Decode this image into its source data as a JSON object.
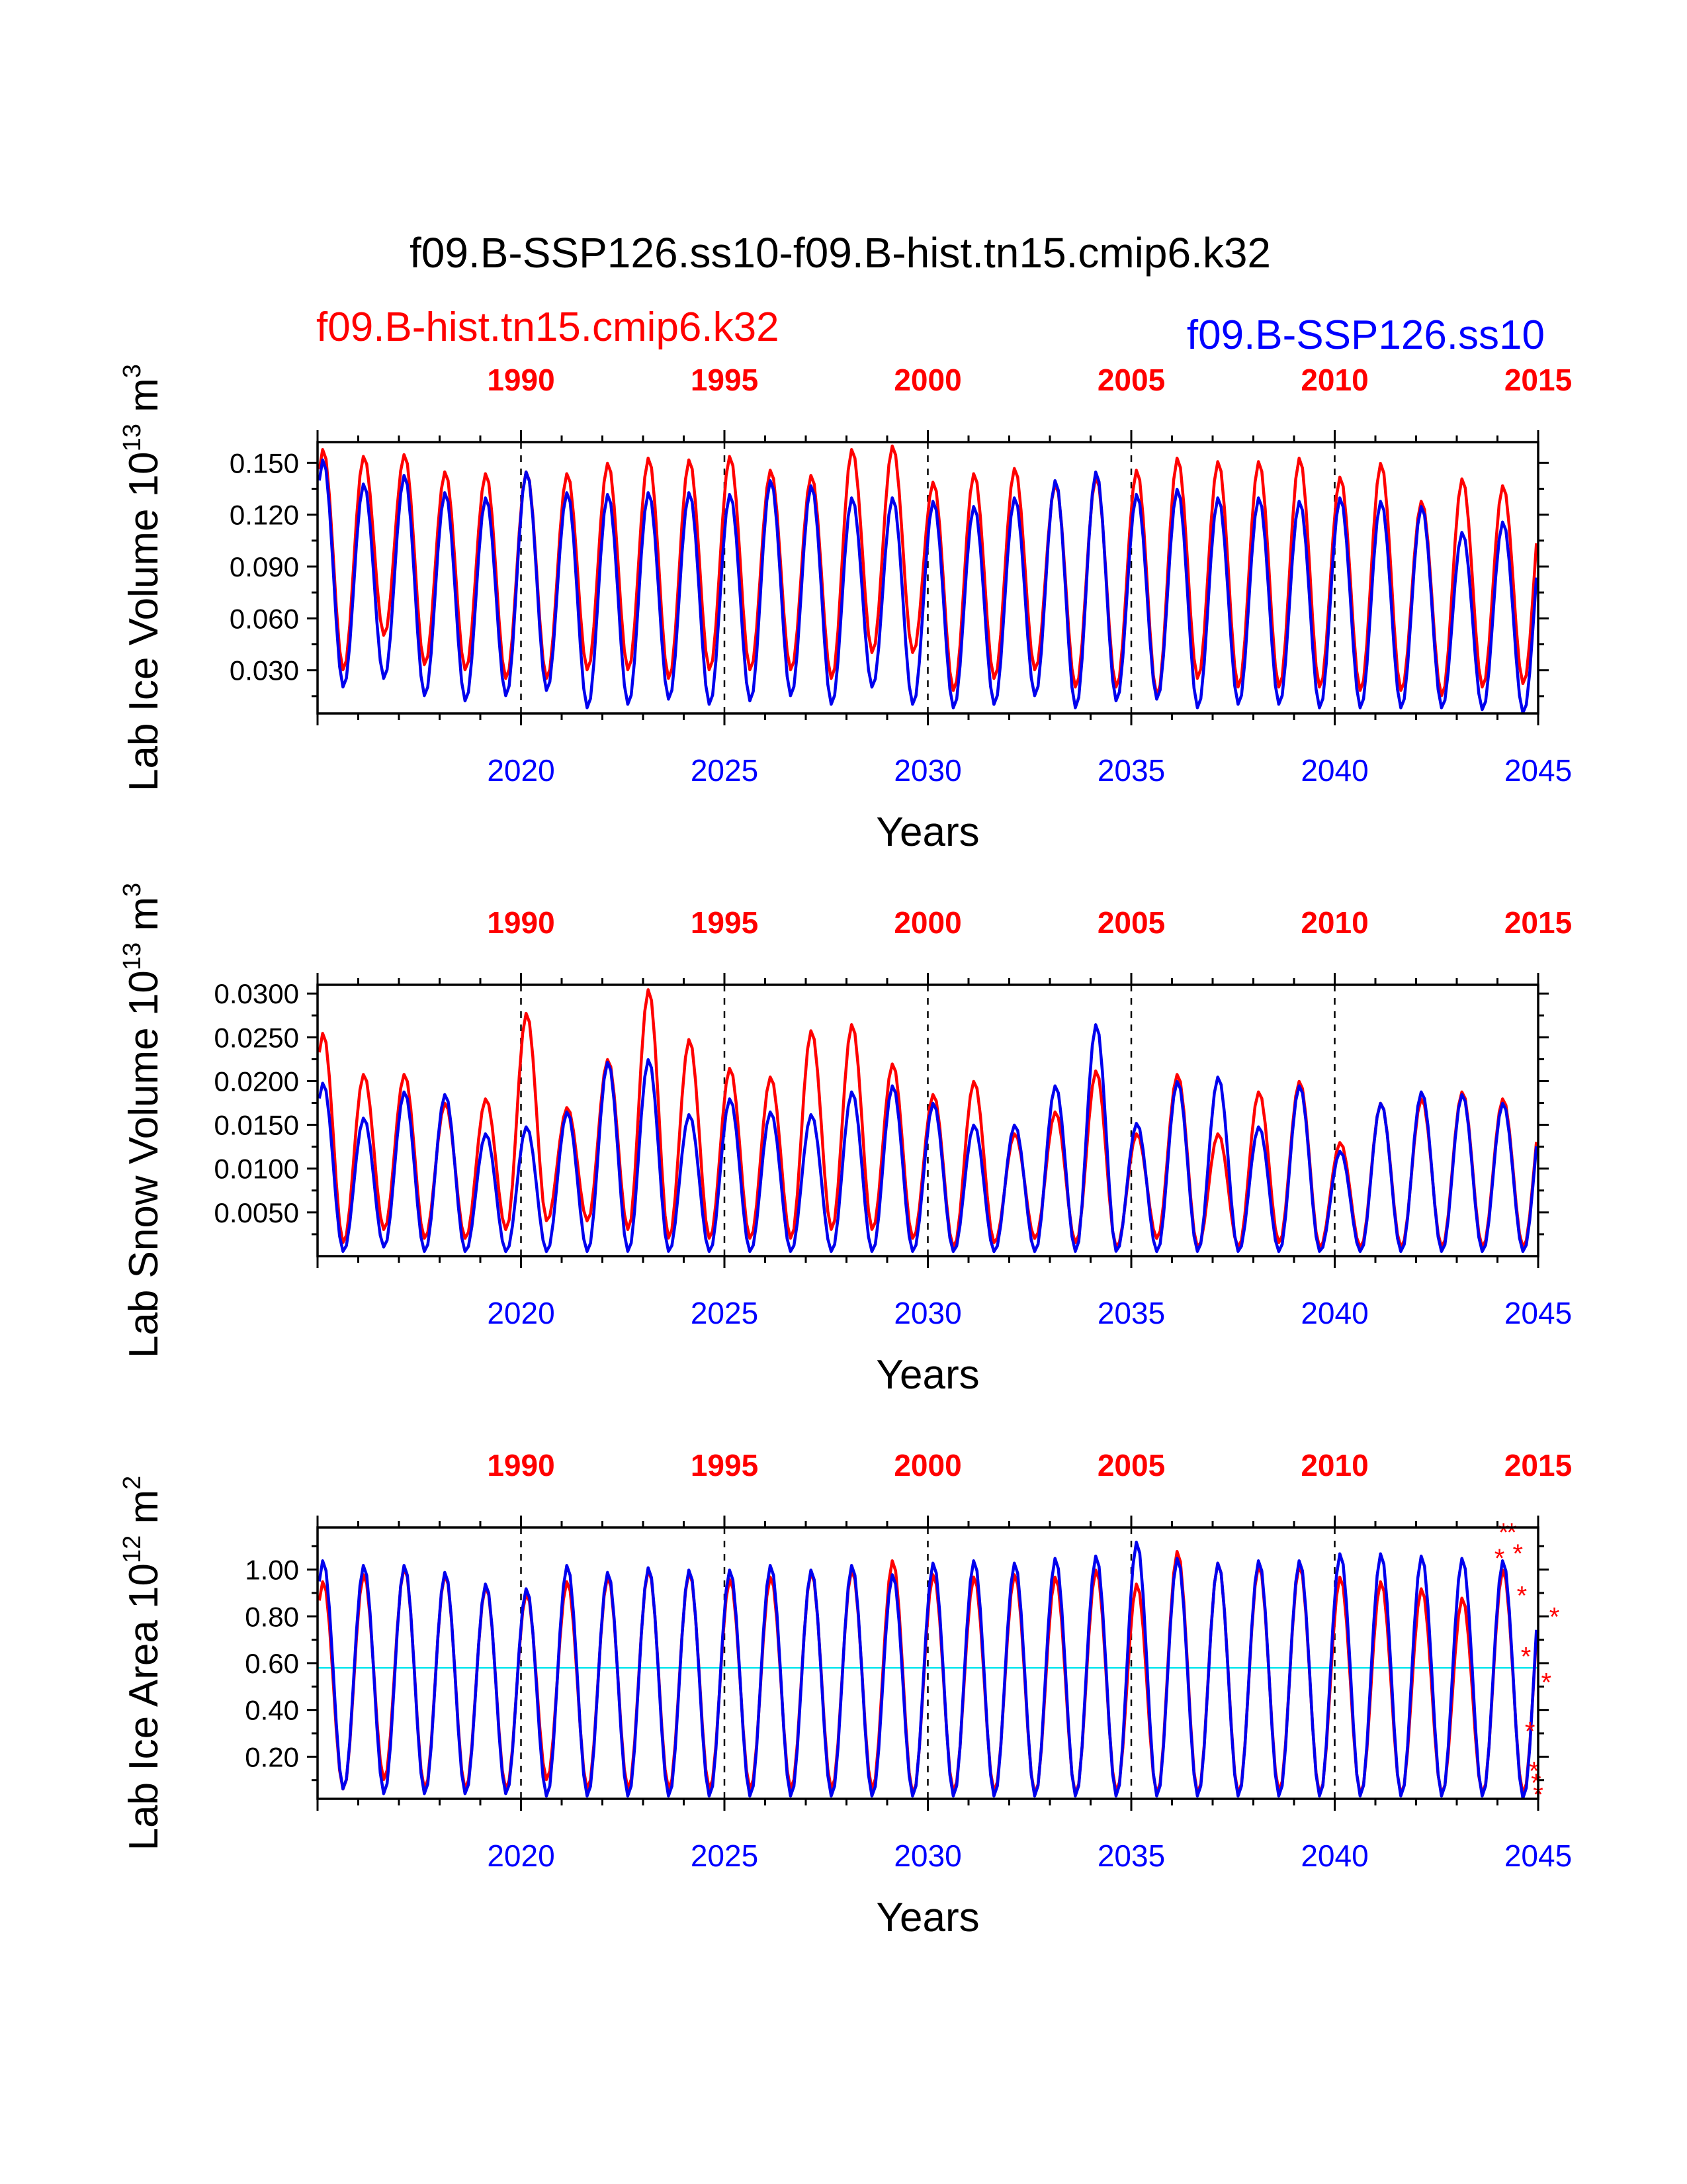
{
  "title": "f09.B-SSP126.ss10-f09.B-hist.tn15.cmip6.k32",
  "legend": {
    "red": "f09.B-hist.tn15.cmip6.k32",
    "blue": "f09.B-SSP126.ss10"
  },
  "colors": {
    "red": "#ff0000",
    "blue": "#0000ee",
    "ref": "#00e5ee"
  },
  "chart_data": [
    {
      "type": "line",
      "id": "ice-volume",
      "ylabel_main": "Lab Ice Volume 10",
      "ylabel_exp": "13",
      "ylabel_unit": " m",
      "ylabel_unit_exp": "3",
      "xlabel": "Years",
      "yticks": [
        "0.030",
        "0.060",
        "0.090",
        "0.120",
        "0.150"
      ],
      "ytick_values": [
        0.03,
        0.06,
        0.09,
        0.12,
        0.15
      ],
      "ylim": [
        0.005,
        0.162
      ],
      "xlim_bottom": [
        2015,
        2045
      ],
      "xlim_top": [
        1985,
        2015
      ],
      "xticks_bottom": [
        "2020",
        "2025",
        "2030",
        "2035",
        "2040",
        "2045"
      ],
      "xticks_top": [
        "1990",
        "1995",
        "2000",
        "2005",
        "2010",
        "2015"
      ],
      "series": [
        {
          "name": "f09.B-hist.tn15.cmip6.k32",
          "color": "red",
          "max": [
            0.158,
            0.154,
            0.155,
            0.145,
            0.144,
            0.145,
            0.144,
            0.15,
            0.153,
            0.152,
            0.154,
            0.146,
            0.143,
            0.158,
            0.16,
            0.139,
            0.144,
            0.147,
            0.138,
            0.142,
            0.146,
            0.153,
            0.151,
            0.151,
            0.153,
            0.142,
            0.15,
            0.128,
            0.141,
            0.137
          ],
          "min": [
            0.03,
            0.05,
            0.033,
            0.03,
            0.025,
            0.025,
            0.03,
            0.03,
            0.025,
            0.03,
            0.03,
            0.03,
            0.025,
            0.04,
            0.04,
            0.018,
            0.025,
            0.03,
            0.02,
            0.02,
            0.015,
            0.025,
            0.02,
            0.02,
            0.02,
            0.018,
            0.018,
            0.015,
            0.02,
            0.022
          ]
        },
        {
          "name": "f09.B-SSP126.ss10",
          "color": "blue",
          "max": [
            0.152,
            0.138,
            0.143,
            0.133,
            0.13,
            0.145,
            0.133,
            0.132,
            0.133,
            0.133,
            0.132,
            0.14,
            0.137,
            0.13,
            0.13,
            0.128,
            0.125,
            0.13,
            0.14,
            0.145,
            0.132,
            0.135,
            0.13,
            0.13,
            0.128,
            0.13,
            0.128,
            0.125,
            0.11,
            0.116
          ],
          "min": [
            0.02,
            0.025,
            0.015,
            0.012,
            0.015,
            0.018,
            0.008,
            0.01,
            0.013,
            0.01,
            0.012,
            0.015,
            0.01,
            0.02,
            0.01,
            0.008,
            0.01,
            0.015,
            0.008,
            0.012,
            0.013,
            0.008,
            0.01,
            0.01,
            0.008,
            0.008,
            0.008,
            0.008,
            0.007,
            0.005
          ]
        }
      ]
    },
    {
      "type": "line",
      "id": "snow-volume",
      "ylabel_main": "Lab Snow Volume 10",
      "ylabel_exp": "13",
      "ylabel_unit": " m",
      "ylabel_unit_exp": "3",
      "xlabel": "Years",
      "yticks": [
        "0.0050",
        "0.0100",
        "0.0150",
        "0.0200",
        "0.0250",
        "0.0300"
      ],
      "ytick_values": [
        0.005,
        0.01,
        0.015,
        0.02,
        0.025,
        0.03
      ],
      "ylim": [
        0.0,
        0.031
      ],
      "xlim_bottom": [
        2015,
        2045
      ],
      "xlim_top": [
        1985,
        2015
      ],
      "xticks_bottom": [
        "2020",
        "2025",
        "2030",
        "2035",
        "2040",
        "2045"
      ],
      "xticks_top": [
        "1990",
        "1995",
        "2000",
        "2005",
        "2010",
        "2015"
      ],
      "series": [
        {
          "name": "f09.B-hist.tn15.cmip6.k32",
          "color": "red",
          "max": [
            0.0255,
            0.0208,
            0.0208,
            0.0175,
            0.018,
            0.0278,
            0.017,
            0.0225,
            0.0305,
            0.0248,
            0.0215,
            0.0205,
            0.0258,
            0.0265,
            0.022,
            0.0185,
            0.02,
            0.014,
            0.0165,
            0.0212,
            0.014,
            0.0208,
            0.014,
            0.0188,
            0.02,
            0.013,
            0.0175,
            0.018,
            0.0188,
            0.018
          ],
          "min": [
            0.0015,
            0.003,
            0.002,
            0.002,
            0.003,
            0.004,
            0.004,
            0.003,
            0.002,
            0.002,
            0.002,
            0.002,
            0.003,
            0.003,
            0.002,
            0.001,
            0.0015,
            0.002,
            0.0015,
            0.001,
            0.002,
            0.001,
            0.001,
            0.0015,
            0.001,
            0.001,
            0.001,
            0.001,
            0.001,
            0.001
          ]
        },
        {
          "name": "f09.B-SSP126.ss10",
          "color": "blue",
          "max": [
            0.0198,
            0.0158,
            0.0188,
            0.0185,
            0.014,
            0.0148,
            0.0165,
            0.0222,
            0.0225,
            0.0162,
            0.018,
            0.0165,
            0.0162,
            0.0188,
            0.0195,
            0.0175,
            0.015,
            0.015,
            0.0195,
            0.0265,
            0.0152,
            0.02,
            0.0205,
            0.0148,
            0.0195,
            0.012,
            0.0175,
            0.0188,
            0.0185,
            0.0175
          ],
          "min": [
            0.0005,
            0.001,
            0.0005,
            0.0005,
            0.0005,
            0.0005,
            0.0005,
            0.0005,
            0.0005,
            0.0005,
            0.0005,
            0.0005,
            0.0005,
            0.0005,
            0.0005,
            0.0005,
            0.0005,
            0.0005,
            0.0005,
            0.0005,
            0.0005,
            0.0005,
            0.0005,
            0.0005,
            0.0005,
            0.0005,
            0.0005,
            0.0005,
            0.0005,
            0.0005
          ]
        }
      ]
    },
    {
      "type": "line",
      "id": "ice-area",
      "ylabel_main": "Lab Ice Area 10",
      "ylabel_exp": "12",
      "ylabel_unit": " m",
      "ylabel_unit_exp": "2",
      "xlabel": "Years",
      "yticks": [
        "0.20",
        "0.40",
        "0.60",
        "0.80",
        "1.00"
      ],
      "ytick_values": [
        0.2,
        0.4,
        0.6,
        0.8,
        1.0
      ],
      "ylim": [
        0.02,
        1.18
      ],
      "reference_line": 0.58,
      "xlim_bottom": [
        2015,
        2045
      ],
      "xlim_top": [
        1985,
        2015
      ],
      "xticks_bottom": [
        "2020",
        "2025",
        "2030",
        "2035",
        "2040",
        "2045"
      ],
      "xticks_top": [
        "1990",
        "1995",
        "2000",
        "2005",
        "2010",
        "2015"
      ],
      "series": [
        {
          "name": "f09.B-hist.tn15.cmip6.k32",
          "color": "red",
          "max": [
            0.95,
            0.98,
            1.01,
            0.98,
            0.93,
            0.9,
            0.95,
            0.97,
            1.0,
            0.99,
            0.96,
            0.97,
            0.99,
            1.0,
            1.04,
            0.98,
            0.97,
            0.98,
            0.97,
            1.0,
            0.94,
            1.08,
            1.03,
            1.02,
            1.02,
            0.97,
            0.95,
            0.92,
            0.88,
            1.0
          ],
          "min": [
            0.06,
            0.1,
            0.06,
            0.06,
            0.06,
            0.1,
            0.06,
            0.06,
            0.06,
            0.06,
            0.06,
            0.06,
            0.06,
            0.06,
            0.04,
            0.05,
            0.05,
            0.04,
            0.04,
            0.05,
            0.04,
            0.04,
            0.04,
            0.05,
            0.04,
            0.04,
            0.04,
            0.04,
            0.04,
            0.04
          ]
        },
        {
          "name": "f09.B-SSP126.ss10",
          "color": "blue",
          "max": [
            1.04,
            1.02,
            1.02,
            0.99,
            0.94,
            0.92,
            1.02,
            0.99,
            1.01,
            1.0,
            1.0,
            1.02,
            1.0,
            1.02,
            0.98,
            1.03,
            1.04,
            1.03,
            1.05,
            1.06,
            1.12,
            1.05,
            1.03,
            1.04,
            1.04,
            1.07,
            1.07,
            1.06,
            1.05,
            1.04
          ],
          "min": [
            0.06,
            0.04,
            0.04,
            0.04,
            0.04,
            0.03,
            0.03,
            0.03,
            0.03,
            0.03,
            0.03,
            0.03,
            0.03,
            0.03,
            0.03,
            0.03,
            0.03,
            0.03,
            0.03,
            0.03,
            0.03,
            0.03,
            0.03,
            0.03,
            0.03,
            0.03,
            0.03,
            0.03,
            0.03,
            0.02
          ]
        }
      ],
      "markers": {
        "symbol": "*",
        "color": "red",
        "points": [
          [
            2044.15,
            1.16
          ],
          [
            2044.35,
            1.16
          ],
          [
            2044.05,
            1.05
          ],
          [
            2044.5,
            1.07
          ],
          [
            2044.6,
            0.89
          ],
          [
            2044.7,
            0.63
          ],
          [
            2044.8,
            0.31
          ],
          [
            2044.9,
            0.14
          ],
          [
            2044.95,
            0.09
          ],
          [
            2045.0,
            0.04
          ],
          [
            2045.2,
            0.52
          ],
          [
            2045.4,
            0.8
          ]
        ]
      }
    }
  ]
}
